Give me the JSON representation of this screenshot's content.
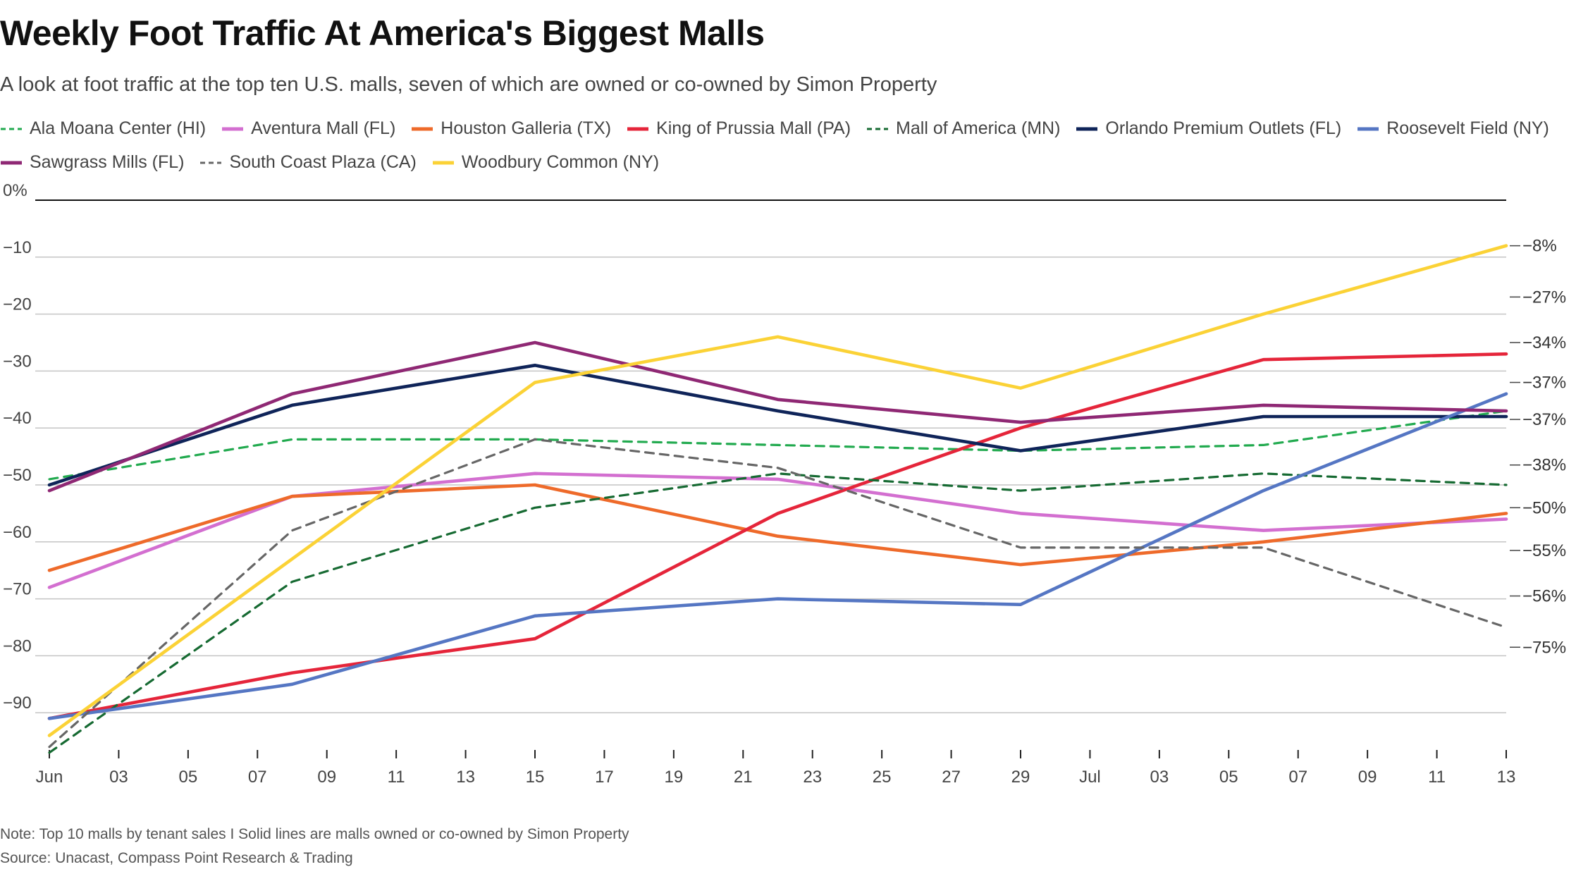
{
  "title": "Weekly Foot Traffic At America's Biggest Malls",
  "subtitle": "A look at foot traffic at the top ten U.S. malls, seven of which are owned or co-owned by Simon Property",
  "note": "Note: Top 10 malls by tenant sales I Solid lines are malls owned or co-owned by Simon Property",
  "source": "Source: Unacast, Compass Point Research & Trading",
  "chart_data": {
    "type": "line",
    "ylim": [
      -100,
      0
    ],
    "y_ticks": [
      0,
      -10,
      -20,
      -30,
      -40,
      -50,
      -60,
      -70,
      -80,
      -90
    ],
    "y_tick_labels": [
      "0%",
      "−10",
      "−20",
      "−30",
      "−40",
      "−50",
      "−60",
      "−70",
      "−80",
      "−90"
    ],
    "x_ticks": [
      {
        "day": 0,
        "label": "Jun"
      },
      {
        "day": 2,
        "label": "03"
      },
      {
        "day": 4,
        "label": "05"
      },
      {
        "day": 6,
        "label": "07"
      },
      {
        "day": 8,
        "label": "09"
      },
      {
        "day": 10,
        "label": "11"
      },
      {
        "day": 12,
        "label": "13"
      },
      {
        "day": 14,
        "label": "15"
      },
      {
        "day": 16,
        "label": "17"
      },
      {
        "day": 18,
        "label": "19"
      },
      {
        "day": 20,
        "label": "21"
      },
      {
        "day": 22,
        "label": "23"
      },
      {
        "day": 24,
        "label": "25"
      },
      {
        "day": 26,
        "label": "27"
      },
      {
        "day": 28,
        "label": "29"
      },
      {
        "day": 30,
        "label": "Jul"
      },
      {
        "day": 32,
        "label": "03"
      },
      {
        "day": 34,
        "label": "05"
      },
      {
        "day": 36,
        "label": "07"
      },
      {
        "day": 38,
        "label": "09"
      },
      {
        "day": 40,
        "label": "11"
      },
      {
        "day": 42,
        "label": "13"
      }
    ],
    "x": [
      0,
      7,
      14,
      21,
      28,
      35,
      42
    ],
    "series": [
      {
        "name": "Ala Moana Center (HI)",
        "color": "#22aa4f",
        "dashed": true,
        "values": [
          -49,
          -42,
          -42,
          -43,
          -44,
          -43,
          -37
        ]
      },
      {
        "name": "Aventura Mall (FL)",
        "color": "#d36fd0",
        "dashed": false,
        "values": [
          -68,
          -52,
          -48,
          -49,
          -55,
          -58,
          -56
        ]
      },
      {
        "name": "Houston Galleria (TX)",
        "color": "#ee6a2a",
        "dashed": false,
        "values": [
          -65,
          -52,
          -50,
          -59,
          -64,
          -60,
          -55
        ]
      },
      {
        "name": "King of Prussia Mall (PA)",
        "color": "#e5253a",
        "dashed": false,
        "values": [
          -91,
          -83,
          -77,
          -55,
          -40,
          -28,
          -27
        ]
      },
      {
        "name": "Mall of America (MN)",
        "color": "#166a32",
        "dashed": true,
        "values": [
          -97,
          -67,
          -54,
          -48,
          -51,
          -48,
          -50
        ]
      },
      {
        "name": "Orlando Premium Outlets (FL)",
        "color": "#0f2459",
        "dashed": false,
        "values": [
          -50,
          -36,
          -29,
          -37,
          -44,
          -38,
          -38
        ]
      },
      {
        "name": "Roosevelt Field (NY)",
        "color": "#5576c3",
        "dashed": false,
        "values": [
          -91,
          -85,
          -73,
          -70,
          -71,
          -51,
          -34
        ]
      },
      {
        "name": "Sawgrass Mills (FL)",
        "color": "#8f2874",
        "dashed": false,
        "values": [
          -51,
          -34,
          -25,
          -35,
          -39,
          -36,
          -37
        ]
      },
      {
        "name": "South Coast Plaza (CA)",
        "color": "#666666",
        "dashed": true,
        "values": [
          -96,
          -58,
          -42,
          -47,
          -61,
          -61,
          -75
        ]
      },
      {
        "name": "Woodbury Common (NY)",
        "color": "#fbd236",
        "dashed": false,
        "values": [
          -94,
          -63,
          -32,
          -24,
          -33,
          -20,
          -8
        ]
      }
    ],
    "end_labels": [
      {
        "value": -8,
        "label": "−8%"
      },
      {
        "value": -17,
        "label": "−27%"
      },
      {
        "value": -25,
        "label": "−34%"
      },
      {
        "value": -32,
        "label": "−37%"
      },
      {
        "value": -38.5,
        "label": "−37%"
      },
      {
        "value": -46.5,
        "label": "−38%"
      },
      {
        "value": -54,
        "label": "−50%"
      },
      {
        "value": -61.5,
        "label": "−55%"
      },
      {
        "value": -69.5,
        "label": "−56%"
      },
      {
        "value": -78.5,
        "label": "−75%"
      }
    ]
  }
}
